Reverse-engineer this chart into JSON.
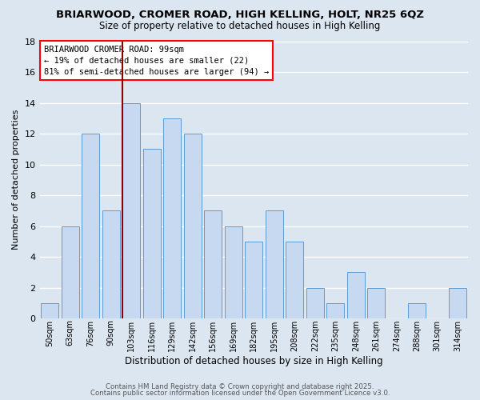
{
  "title_line1": "BRIARWOOD, CROMER ROAD, HIGH KELLING, HOLT, NR25 6QZ",
  "title_line2": "Size of property relative to detached houses in High Kelling",
  "xlabel": "Distribution of detached houses by size in High Kelling",
  "ylabel": "Number of detached properties",
  "bar_labels": [
    "50sqm",
    "63sqm",
    "76sqm",
    "90sqm",
    "103sqm",
    "116sqm",
    "129sqm",
    "142sqm",
    "156sqm",
    "169sqm",
    "182sqm",
    "195sqm",
    "208sqm",
    "222sqm",
    "235sqm",
    "248sqm",
    "261sqm",
    "274sqm",
    "288sqm",
    "301sqm",
    "314sqm"
  ],
  "bar_values": [
    1,
    6,
    12,
    7,
    14,
    11,
    13,
    12,
    7,
    6,
    5,
    7,
    5,
    2,
    1,
    3,
    2,
    0,
    1,
    0,
    2
  ],
  "bar_color": "#c6d9f1",
  "bar_edge_color": "#5b9bd5",
  "background_color": "#dce6f1",
  "grid_color": "#ffffff",
  "vline_x_index": 4,
  "vline_color": "#8b0000",
  "annotation_text": "BRIARWOOD CROMER ROAD: 99sqm\n← 19% of detached houses are smaller (22)\n81% of semi-detached houses are larger (94) →",
  "annotation_box_edge_color": "red",
  "annotation_box_face_color": "white",
  "ylim": [
    0,
    18
  ],
  "yticks": [
    0,
    2,
    4,
    6,
    8,
    10,
    12,
    14,
    16,
    18
  ],
  "footer_line1": "Contains HM Land Registry data © Crown copyright and database right 2025.",
  "footer_line2": "Contains public sector information licensed under the Open Government Licence v3.0."
}
